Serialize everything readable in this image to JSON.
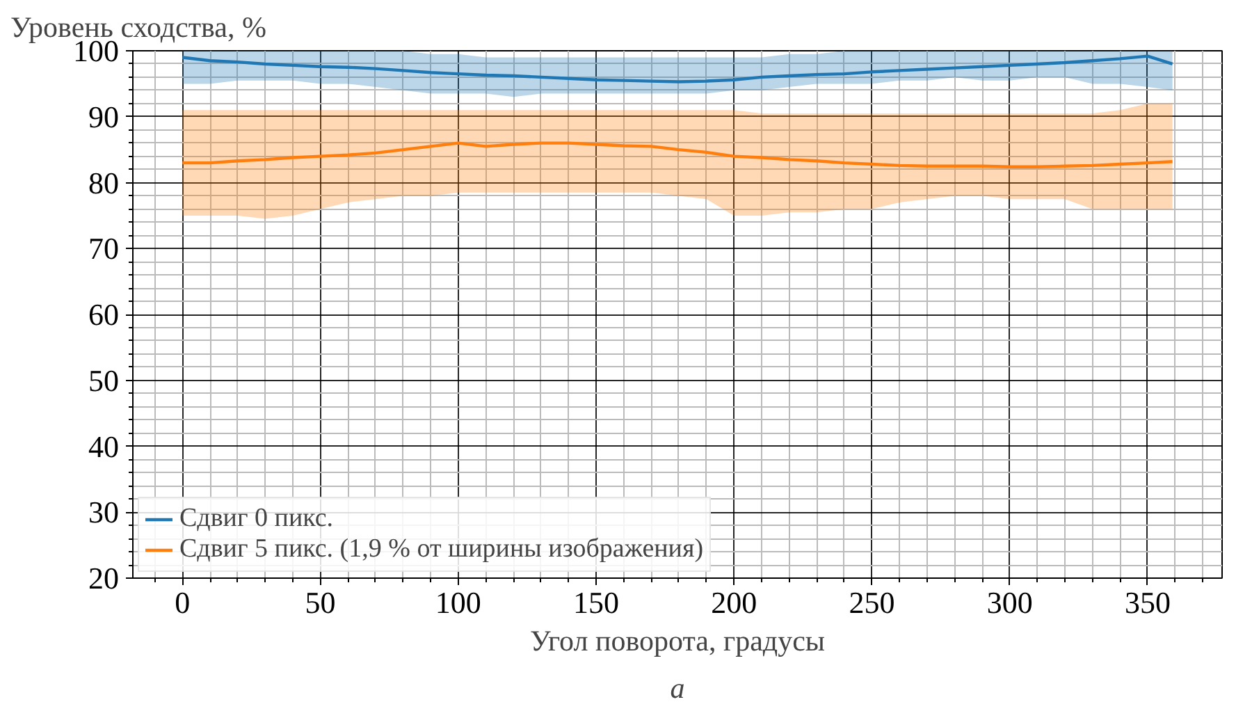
{
  "chart_data": {
    "type": "line",
    "ylabel": "Уровень сходства, %",
    "xlabel": "Угол поворота, градусы",
    "annotations": [
      "а"
    ],
    "x": [
      0,
      10,
      20,
      30,
      40,
      50,
      60,
      70,
      80,
      90,
      100,
      110,
      120,
      130,
      140,
      150,
      160,
      170,
      180,
      190,
      200,
      210,
      220,
      230,
      240,
      250,
      260,
      270,
      280,
      290,
      300,
      310,
      320,
      330,
      340,
      350,
      359
    ],
    "series": [
      {
        "name": "Сдвиг 0 пикс.",
        "color": "#1f77b4",
        "values": [
          99,
          98.5,
          98.3,
          98,
          97.8,
          97.6,
          97.5,
          97.3,
          97,
          96.7,
          96.5,
          96.3,
          96.2,
          96,
          95.8,
          95.6,
          95.5,
          95.4,
          95.3,
          95.4,
          95.6,
          96,
          96.2,
          96.4,
          96.5,
          96.8,
          97,
          97.2,
          97.4,
          97.6,
          97.8,
          98,
          98.2,
          98.5,
          98.8,
          99.2,
          98
        ],
        "lower": [
          95,
          95,
          95.5,
          95.5,
          95.5,
          95,
          95,
          94.5,
          94,
          93.5,
          93.5,
          93.5,
          93,
          93.5,
          93.5,
          93.5,
          93.5,
          93.5,
          93.5,
          93.5,
          94,
          94,
          94.5,
          95,
          95,
          95,
          95.5,
          95.5,
          96,
          95.5,
          95.5,
          96,
          96,
          95,
          95,
          94.5,
          94
        ],
        "upper": [
          100,
          100,
          100,
          100,
          100,
          100,
          100,
          100,
          100,
          99.5,
          99.5,
          99,
          99,
          99,
          99,
          99,
          99,
          99,
          99,
          99,
          99,
          99,
          99.5,
          99.5,
          100,
          100,
          100,
          100,
          100,
          100,
          100,
          100,
          100,
          100,
          100,
          100,
          100
        ]
      },
      {
        "name": "Сдвиг 5 пикс. (1,9 % от ширины изображения)",
        "color": "#ff7f0e",
        "values": [
          83,
          83,
          83.3,
          83.5,
          83.8,
          84,
          84.2,
          84.5,
          85,
          85.5,
          86,
          85.5,
          85.8,
          86,
          86,
          85.8,
          85.6,
          85.5,
          85,
          84.6,
          84,
          83.8,
          83.5,
          83.3,
          83,
          82.8,
          82.6,
          82.5,
          82.5,
          82.5,
          82.4,
          82.4,
          82.5,
          82.6,
          82.8,
          83,
          83.2
        ],
        "lower": [
          75,
          75,
          75,
          74.5,
          75,
          76,
          77,
          77.5,
          78,
          78,
          78.5,
          78.5,
          78.5,
          78.5,
          78.5,
          78.5,
          78.5,
          78.5,
          78,
          77.5,
          75,
          75,
          75.5,
          75.5,
          76,
          76,
          77,
          77.5,
          78,
          78,
          77.5,
          77.5,
          77.5,
          76,
          76,
          76,
          76
        ],
        "upper": [
          91,
          91,
          91,
          91,
          91,
          91,
          91,
          91,
          91,
          91,
          91,
          91,
          91,
          91,
          91,
          91,
          91,
          91,
          91,
          91,
          91,
          90.5,
          90.5,
          90.5,
          90.5,
          90.5,
          90.5,
          90.5,
          90.5,
          90.5,
          90.5,
          90.5,
          90.5,
          90.5,
          91,
          92,
          92
        ]
      }
    ],
    "xlim": [
      -18,
      377
    ],
    "ylim": [
      20,
      100
    ],
    "xticks": [
      0,
      50,
      100,
      150,
      200,
      250,
      300,
      350
    ],
    "yticks": [
      20,
      30,
      40,
      50,
      60,
      70,
      80,
      90,
      100
    ],
    "grid": true,
    "legend": "bottom left",
    "marker": "none",
    "line_style": "solid"
  }
}
